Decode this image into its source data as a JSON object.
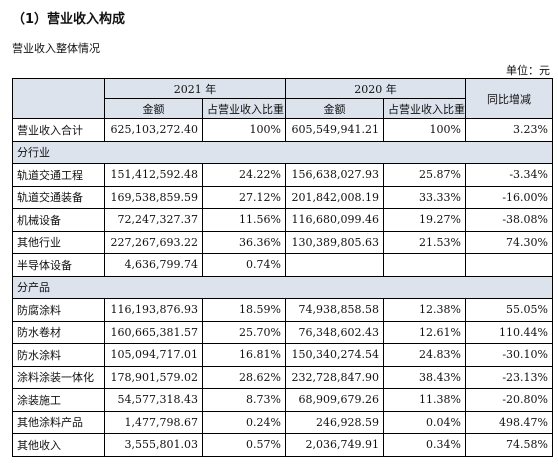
{
  "heading": "（1）营业收入构成",
  "subtitle": "营业收入整体情况",
  "unit": "单位：元",
  "header": {
    "year_2021": "2021 年",
    "year_2020": "2020 年",
    "yoy": "同比增减",
    "amount_2021": "金额",
    "share_2021": "占营业收入比重",
    "amount_2020": "金额",
    "share_2020": "占营业收入比重"
  },
  "total_row": {
    "label": "营业收入合计",
    "amount_2021": "625,103,272.40",
    "share_2021": "100%",
    "amount_2020": "605,549,941.21",
    "share_2020": "100%",
    "yoy": "3.23%"
  },
  "industry": {
    "section_label": "分行业",
    "rows": [
      {
        "label": "轨道交通工程",
        "amount_2021": "151,412,592.48",
        "share_2021": "24.22%",
        "amount_2020": "156,638,027.93",
        "share_2020": "25.87%",
        "yoy": "-3.34%"
      },
      {
        "label": "轨道交通装备",
        "amount_2021": "169,538,859.59",
        "share_2021": "27.12%",
        "amount_2020": "201,842,008.19",
        "share_2020": "33.33%",
        "yoy": "-16.00%"
      },
      {
        "label": "机械设备",
        "amount_2021": "72,247,327.37",
        "share_2021": "11.56%",
        "amount_2020": "116,680,099.46",
        "share_2020": "19.27%",
        "yoy": "-38.08%"
      },
      {
        "label": "其他行业",
        "amount_2021": "227,267,693.22",
        "share_2021": "36.36%",
        "amount_2020": "130,389,805.63",
        "share_2020": "21.53%",
        "yoy": "74.30%"
      },
      {
        "label": "半导体设备",
        "amount_2021": "4,636,799.74",
        "share_2021": "0.74%",
        "amount_2020": "",
        "share_2020": "",
        "yoy": ""
      }
    ]
  },
  "product": {
    "section_label": "分产品",
    "rows": [
      {
        "label": "防腐涂料",
        "amount_2021": "116,193,876.93",
        "share_2021": "18.59%",
        "amount_2020": "74,938,858.58",
        "share_2020": "12.38%",
        "yoy": "55.05%"
      },
      {
        "label": "防水卷材",
        "amount_2021": "160,665,381.57",
        "share_2021": "25.70%",
        "amount_2020": "76,348,602.43",
        "share_2020": "12.61%",
        "yoy": "110.44%"
      },
      {
        "label": "防水涂料",
        "amount_2021": "105,094,717.01",
        "share_2021": "16.81%",
        "amount_2020": "150,340,274.54",
        "share_2020": "24.83%",
        "yoy": "-30.10%"
      },
      {
        "label": "涂料涂装一体化",
        "amount_2021": "178,901,579.02",
        "share_2021": "28.62%",
        "amount_2020": "232,728,847.90",
        "share_2020": "38.43%",
        "yoy": "-23.13%"
      },
      {
        "label": "涂装施工",
        "amount_2021": "54,577,318.43",
        "share_2021": "8.73%",
        "amount_2020": "68,909,679.26",
        "share_2020": "11.38%",
        "yoy": "-20.80%"
      },
      {
        "label": "其他涂料产品",
        "amount_2021": "1,477,798.67",
        "share_2021": "0.24%",
        "amount_2020": "246,928.59",
        "share_2020": "0.04%",
        "yoy": "498.47%"
      },
      {
        "label": "其他收入",
        "amount_2021": "3,555,801.03",
        "share_2021": "0.57%",
        "amount_2020": "2,036,749.91",
        "share_2020": "0.34%",
        "yoy": "74.58%"
      }
    ]
  }
}
